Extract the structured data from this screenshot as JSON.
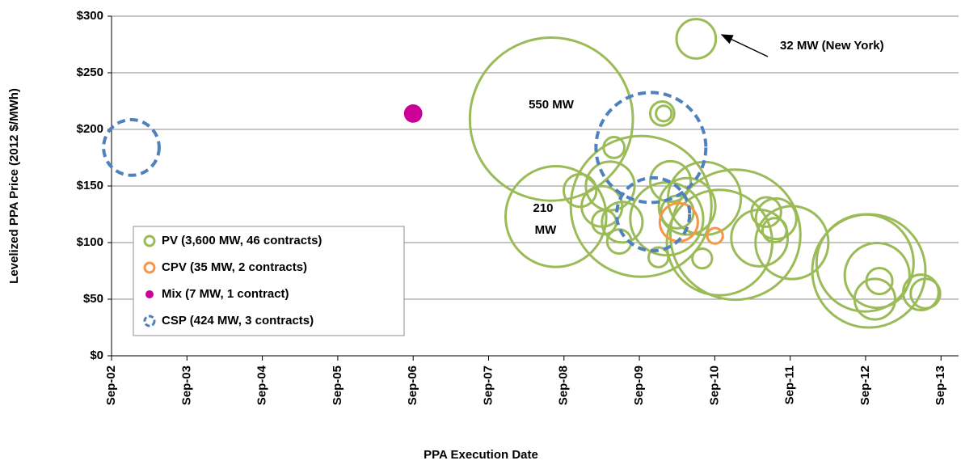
{
  "chart_data": {
    "type": "bubble",
    "x_label": "PPA Execution Date",
    "y_label": "Levelized PPA Price (2012 $/MWh)",
    "xlim": [
      2002.667,
      2013.9
    ],
    "ylim": [
      0,
      300
    ],
    "xticks": [
      {
        "value": 2002.667,
        "label": "Sep-02"
      },
      {
        "value": 2003.667,
        "label": "Sep-03"
      },
      {
        "value": 2004.667,
        "label": "Sep-04"
      },
      {
        "value": 2005.667,
        "label": "Sep-05"
      },
      {
        "value": 2006.667,
        "label": "Sep-06"
      },
      {
        "value": 2007.667,
        "label": "Sep-07"
      },
      {
        "value": 2008.667,
        "label": "Sep-08"
      },
      {
        "value": 2009.667,
        "label": "Sep-09"
      },
      {
        "value": 2010.667,
        "label": "Sep-10"
      },
      {
        "value": 2011.667,
        "label": "Sep-11"
      },
      {
        "value": 2012.667,
        "label": "Sep-12"
      },
      {
        "value": 2013.667,
        "label": "Sep-13"
      }
    ],
    "yticks": [
      {
        "value": 0,
        "label": "$0"
      },
      {
        "value": 50,
        "label": "$50"
      },
      {
        "value": 100,
        "label": "$100"
      },
      {
        "value": 150,
        "label": "$150"
      },
      {
        "value": 200,
        "label": "$200"
      },
      {
        "value": 250,
        "label": "$250"
      },
      {
        "value": 300,
        "label": "$300"
      }
    ],
    "grid": true,
    "legend": "lower-left",
    "series": [
      {
        "name": "PV (3,600 MW, 46 contracts)",
        "color": "#9bbb59",
        "marker": "ring",
        "x": [
          2010.42,
          2008.5,
          2008.56,
          2009.97,
          2009.99,
          2009.33,
          2009.69,
          2008.88,
          2009.17,
          2009.28,
          2009.2,
          2009.4,
          2009.44,
          2010.08,
          2010.17,
          2010.3,
          2010.03,
          2010.53,
          2009.92,
          2010.5,
          2010.73,
          2010.94,
          2011.35,
          2011.46,
          2011.48,
          2011.69,
          2011.26,
          2012.66,
          2012.71,
          2012.82,
          2012.85,
          2012.79,
          2013.4,
          2013.46
        ],
        "values": [
          280,
          209,
          123,
          214,
          214,
          184,
          132,
          146,
          132,
          150,
          118,
          101,
          118,
          154,
          127,
          132,
          121,
          139,
          87,
          86,
          100,
          107,
          127,
          111,
          121,
          100,
          104,
          82,
          75,
          71,
          66,
          50,
          56,
          55
        ],
        "sizes": [
          32,
          550,
          210,
          12,
          5,
          9,
          410,
          22,
          34,
          49,
          12,
          12,
          34,
          34,
          22,
          66,
          110,
          110,
          8,
          8,
          230,
          350,
          18,
          12,
          34,
          110,
          66,
          195,
          265,
          87,
          14,
          34,
          26,
          18
        ]
      },
      {
        "name": "CPV (35 MW, 2 contracts)",
        "color": "#f79646",
        "marker": "ring",
        "x": [
          2010.19,
          2010.67
        ],
        "values": [
          118,
          106
        ],
        "sizes": [
          30,
          5
        ]
      },
      {
        "name": "Mix (7 MW, 1 contract)",
        "color": "#cc0099",
        "marker": "dot",
        "x": [
          2006.667
        ],
        "values": [
          214
        ],
        "sizes": [
          7
        ]
      },
      {
        "name": "CSP (424 MW, 3 contracts)",
        "color": "#4f81bd",
        "marker": "dashed-ring",
        "x": [
          2002.93,
          2009.82,
          2009.85
        ],
        "values": [
          184,
          184,
          125
        ],
        "sizes": [
          64,
          250,
          110
        ]
      }
    ],
    "annotations": [
      "550 MW",
      "210",
      "MW",
      "32 MW (New York)"
    ]
  }
}
